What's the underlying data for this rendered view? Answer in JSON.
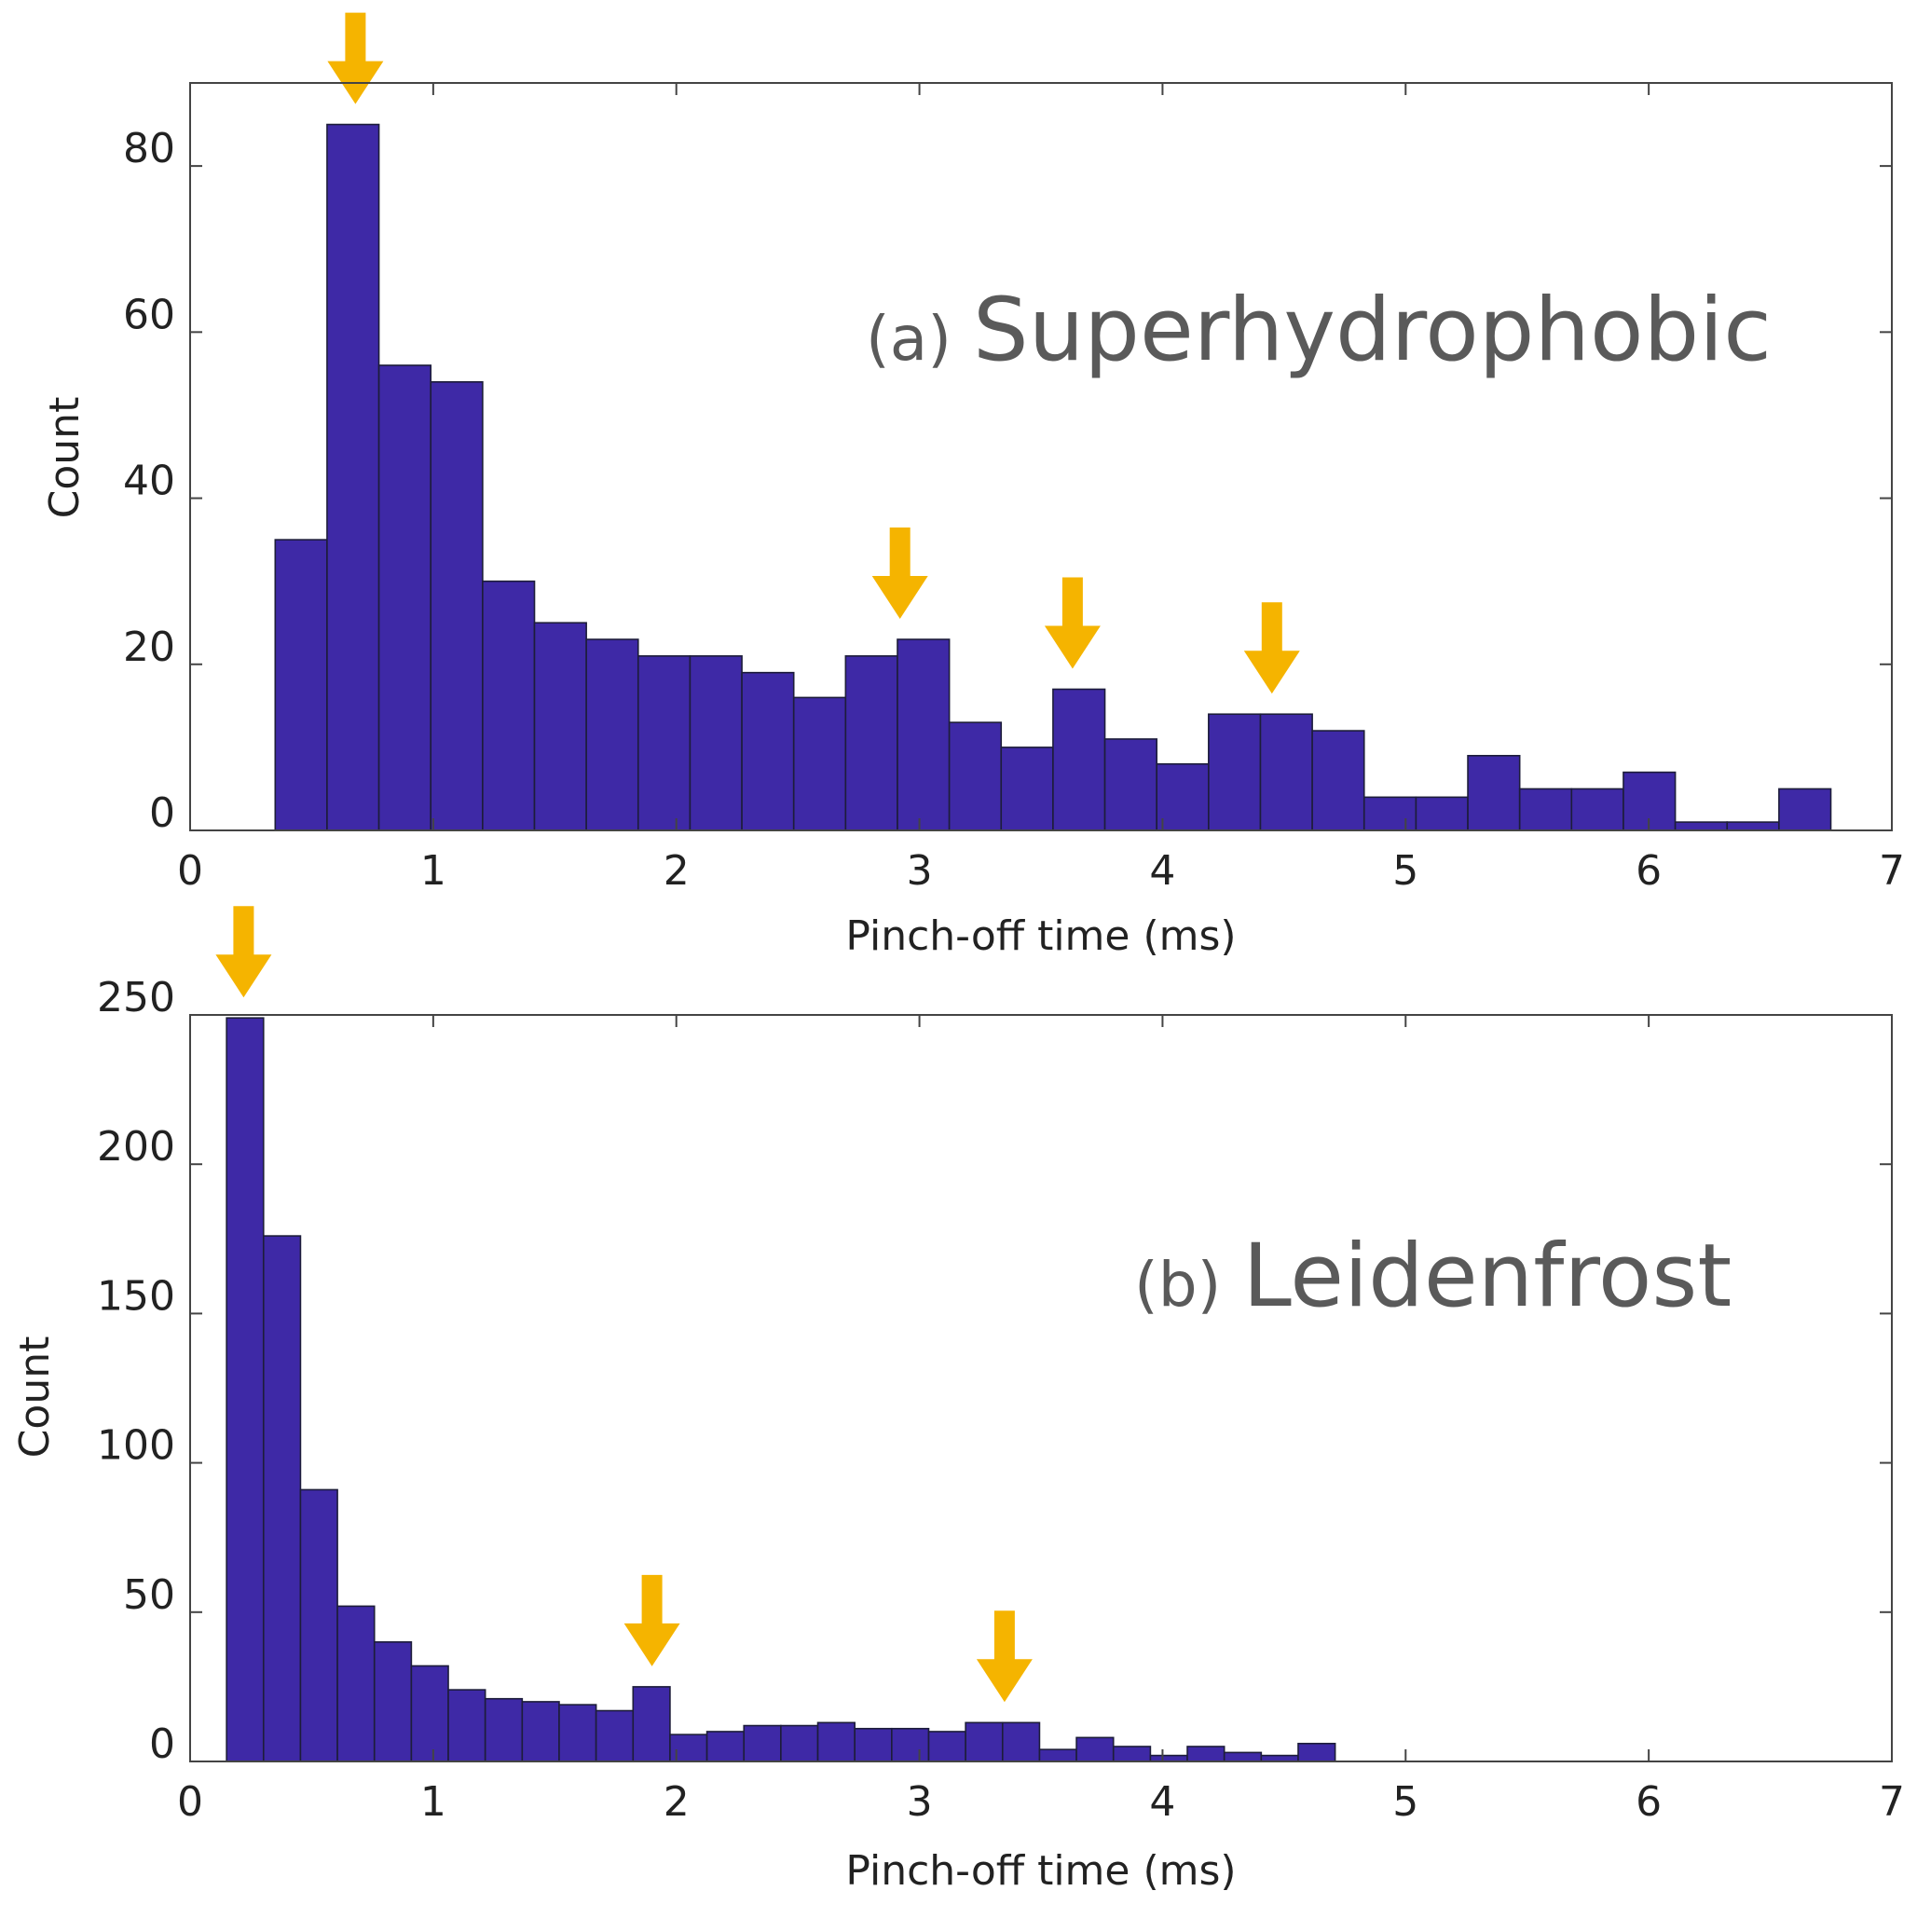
{
  "colors": {
    "bar_fill": "#3e29a6",
    "bar_edge": "#1d1d3a",
    "arrow": "#f5b400",
    "axis": "#444444",
    "title_text": "#5a5a5a"
  },
  "chart_data": [
    {
      "type": "bar",
      "histogram": true,
      "panel": "a",
      "title_tag": "(a)",
      "title": "Superhydrophobic",
      "xlabel": "Pinch-off time (ms)",
      "ylabel": "Count",
      "xlim": [
        0,
        7
      ],
      "ylim": [
        0,
        90
      ],
      "xticks": [
        0,
        1,
        2,
        3,
        4,
        5,
        6,
        7
      ],
      "yticks": [
        0,
        20,
        40,
        60,
        80
      ],
      "xtick_labels": [
        "0",
        "1",
        "2",
        "3",
        "4",
        "5",
        "6",
        "7"
      ],
      "ytick_labels": [
        "0",
        "20",
        "40",
        "60",
        "80"
      ],
      "bin_start": 0.35,
      "bin_width": 0.2133,
      "values": [
        35,
        85,
        56,
        54,
        30,
        25,
        23,
        21,
        21,
        19,
        16,
        21,
        23,
        13,
        10,
        17,
        11,
        8,
        14,
        14,
        12,
        4,
        4,
        9,
        5,
        5,
        7,
        1,
        1,
        5
      ],
      "arrows_x": [
        0.68,
        2.92,
        3.63,
        4.45
      ]
    },
    {
      "type": "bar",
      "histogram": true,
      "panel": "b",
      "title_tag": "(b)",
      "title": "Leidenfrost",
      "xlabel": "Pinch-off time (ms)",
      "ylabel": "Count",
      "xlim": [
        0,
        7
      ],
      "ylim": [
        0,
        250
      ],
      "xticks": [
        0,
        1,
        2,
        3,
        4,
        5,
        6,
        7
      ],
      "yticks": [
        0,
        50,
        100,
        150,
        200,
        250
      ],
      "xtick_labels": [
        "0",
        "1",
        "2",
        "3",
        "4",
        "5",
        "6",
        "7"
      ],
      "ytick_labels": [
        "0",
        "50",
        "100",
        "150",
        "200",
        "250"
      ],
      "bin_start": 0.15,
      "bin_width": 0.152,
      "values": [
        249,
        176,
        91,
        52,
        40,
        32,
        24,
        21,
        20,
        19,
        17,
        25,
        9,
        10,
        12,
        12,
        13,
        11,
        11,
        10,
        13,
        13,
        4,
        8,
        5,
        2,
        5,
        3,
        2,
        6
      ],
      "arrows_x": [
        0.22,
        1.9,
        3.35
      ]
    }
  ]
}
